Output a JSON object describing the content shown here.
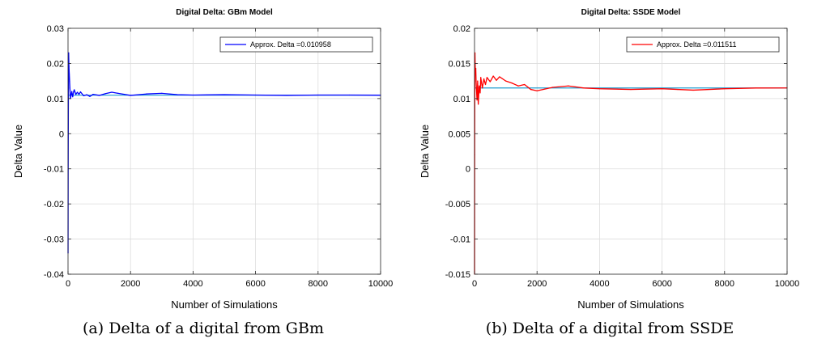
{
  "chart_data": [
    {
      "type": "line",
      "title": "Digital Delta: GBm Model",
      "xlabel": "Number of Simulations",
      "ylabel": "Delta Value",
      "xlim": [
        0,
        10000
      ],
      "ylim": [
        -0.04,
        0.03
      ],
      "xticks": [
        0,
        2000,
        4000,
        6000,
        8000,
        10000
      ],
      "xtick_labels": [
        "0",
        "2000",
        "4000",
        "6000",
        "8000",
        "10000"
      ],
      "yticks": [
        -0.04,
        -0.03,
        -0.02,
        -0.01,
        0,
        0.01,
        0.02,
        0.03
      ],
      "ytick_labels": [
        "-0.04",
        "-0.03",
        "-0.02",
        "-0.01",
        "0",
        "0.01",
        "0.02",
        "0.03"
      ],
      "grid": true,
      "legend_position": "top-right",
      "reference_line": {
        "y": 0.010958,
        "color": "#1f9bd1"
      },
      "series": [
        {
          "name": "Approx. Delta =0.010958",
          "color": "#0000ff",
          "x": [
            1,
            5,
            10,
            15,
            20,
            30,
            40,
            50,
            60,
            80,
            100,
            120,
            150,
            180,
            200,
            250,
            300,
            350,
            400,
            500,
            600,
            700,
            800,
            1000,
            1200,
            1400,
            1600,
            1800,
            2000,
            2500,
            3000,
            3500,
            4000,
            5000,
            6000,
            7000,
            8000,
            9000,
            10000
          ],
          "y": [
            -0.034,
            -0.01,
            0.006,
            0.018,
            0.023,
            0.019,
            0.017,
            0.015,
            0.013,
            0.01,
            0.011,
            0.012,
            0.0105,
            0.012,
            0.0125,
            0.0112,
            0.0118,
            0.0112,
            0.0119,
            0.0108,
            0.0111,
            0.0106,
            0.0112,
            0.0109,
            0.0114,
            0.0118,
            0.0115,
            0.0112,
            0.0109,
            0.0113,
            0.0115,
            0.0111,
            0.011,
            0.0111,
            0.011,
            0.0109,
            0.011,
            0.011,
            0.01096
          ]
        }
      ]
    },
    {
      "type": "line",
      "title": "Digital Delta: SSDE Model",
      "xlabel": "Number of Simulations",
      "ylabel": "Delta Value",
      "xlim": [
        0,
        10000
      ],
      "ylim": [
        -0.015,
        0.02
      ],
      "xticks": [
        0,
        2000,
        4000,
        6000,
        8000,
        10000
      ],
      "xtick_labels": [
        "0",
        "2000",
        "4000",
        "6000",
        "8000",
        "10000"
      ],
      "yticks": [
        -0.015,
        -0.01,
        -0.005,
        0,
        0.005,
        0.01,
        0.015,
        0.02
      ],
      "ytick_labels": [
        "-0.015",
        "-0.01",
        "-0.005",
        "0",
        "0.005",
        "0.01",
        "0.015",
        "0.02"
      ],
      "grid": true,
      "legend_position": "top-right",
      "reference_line": {
        "y": 0.011511,
        "color": "#1f9bd1"
      },
      "series": [
        {
          "name": "Approx. Delta =0.011511",
          "color": "#ff0000",
          "x": [
            1,
            5,
            10,
            15,
            20,
            30,
            40,
            50,
            60,
            80,
            100,
            120,
            150,
            180,
            200,
            250,
            300,
            350,
            400,
            500,
            600,
            700,
            800,
            1000,
            1200,
            1400,
            1600,
            1800,
            2000,
            2500,
            3000,
            3500,
            4000,
            5000,
            6000,
            6500,
            7000,
            8000,
            9000,
            10000
          ],
          "y": [
            -0.015,
            0.002,
            0.012,
            0.0165,
            0.015,
            0.0135,
            0.0143,
            0.0125,
            0.0115,
            0.0098,
            0.0125,
            0.0092,
            0.0118,
            0.0108,
            0.013,
            0.0115,
            0.0128,
            0.012,
            0.013,
            0.0124,
            0.0132,
            0.0126,
            0.0131,
            0.0125,
            0.0122,
            0.0118,
            0.012,
            0.0113,
            0.0111,
            0.0116,
            0.0118,
            0.0115,
            0.0114,
            0.0113,
            0.0114,
            0.0113,
            0.0112,
            0.0114,
            0.0115,
            0.01151
          ]
        }
      ]
    }
  ],
  "captions": {
    "a": "(a)  Delta of a digital from GBm",
    "b": "(b)  Delta of a digital from SSDE"
  }
}
